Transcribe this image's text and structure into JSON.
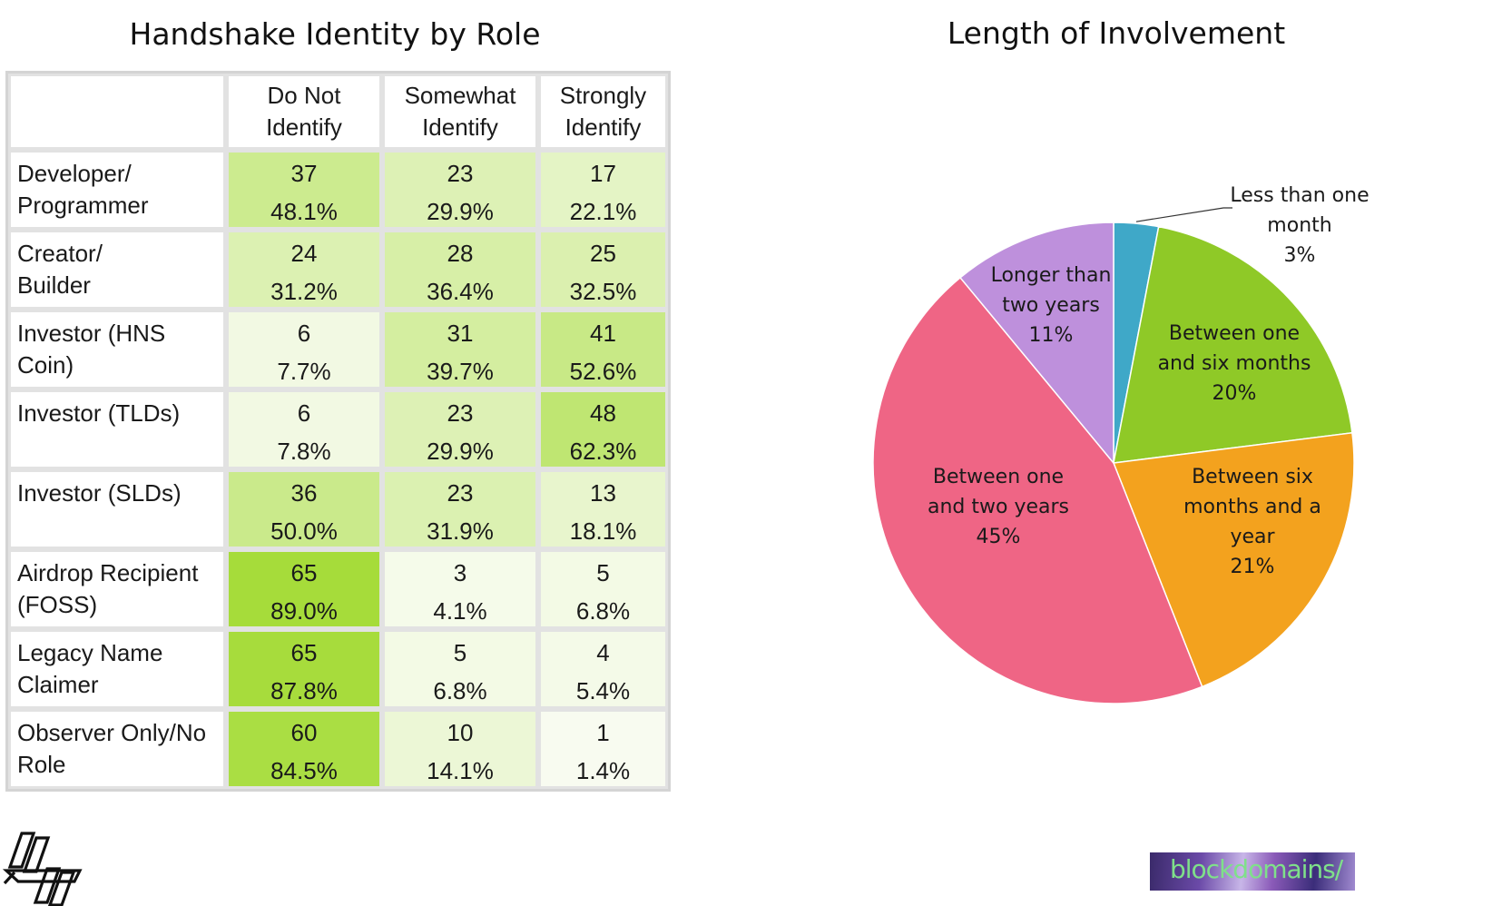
{
  "table": {
    "title": "Handshake Identity by Role",
    "columns": [
      "",
      "Do Not\nIdentify",
      "Somewhat\nIdentify",
      "Strongly\nIdentify"
    ],
    "rows": [
      {
        "role": "Developer/\nProgrammer",
        "cells": [
          {
            "count": "37",
            "pct": "48.1%"
          },
          {
            "count": "23",
            "pct": "29.9%"
          },
          {
            "count": "17",
            "pct": "22.1%"
          }
        ]
      },
      {
        "role": "Creator/\nBuilder",
        "cells": [
          {
            "count": "24",
            "pct": "31.2%"
          },
          {
            "count": "28",
            "pct": "36.4%"
          },
          {
            "count": "25",
            "pct": "32.5%"
          }
        ]
      },
      {
        "role": "Investor (HNS\nCoin)",
        "cells": [
          {
            "count": "6",
            "pct": "7.7%"
          },
          {
            "count": "31",
            "pct": "39.7%"
          },
          {
            "count": "41",
            "pct": "52.6%"
          }
        ]
      },
      {
        "role": "Investor (TLDs)",
        "cells": [
          {
            "count": "6",
            "pct": "7.8%"
          },
          {
            "count": "23",
            "pct": "29.9%"
          },
          {
            "count": "48",
            "pct": "62.3%"
          }
        ]
      },
      {
        "role": "Investor (SLDs)",
        "cells": [
          {
            "count": "36",
            "pct": "50.0%"
          },
          {
            "count": "23",
            "pct": "31.9%"
          },
          {
            "count": "13",
            "pct": "18.1%"
          }
        ]
      },
      {
        "role": "Airdrop Recipient\n(FOSS)",
        "cells": [
          {
            "count": "65",
            "pct": "89.0%"
          },
          {
            "count": "3",
            "pct": "4.1%"
          },
          {
            "count": "5",
            "pct": "6.8%"
          }
        ]
      },
      {
        "role": "Legacy Name\nClaimer",
        "cells": [
          {
            "count": "65",
            "pct": "87.8%"
          },
          {
            "count": "5",
            "pct": "6.8%"
          },
          {
            "count": "4",
            "pct": "5.4%"
          }
        ]
      },
      {
        "role": "Observer Only/No\nRole",
        "cells": [
          {
            "count": "60",
            "pct": "84.5%"
          },
          {
            "count": "10",
            "pct": "14.1%"
          },
          {
            "count": "1",
            "pct": "1.4%"
          }
        ]
      }
    ],
    "heat_colors": {
      "low": "#f9fcf3",
      "high": "#a6dc3a"
    }
  },
  "chart_data": [
    {
      "type": "table",
      "title": "Handshake Identity by Role",
      "columns": [
        "Do Not Identify",
        "Somewhat Identify",
        "Strongly Identify"
      ],
      "rows": [
        "Developer/Programmer",
        "Creator/Builder",
        "Investor (HNS Coin)",
        "Investor (TLDs)",
        "Investor (SLDs)",
        "Airdrop Recipient (FOSS)",
        "Legacy Name Claimer",
        "Observer Only/No Role"
      ],
      "counts": [
        [
          37,
          23,
          17
        ],
        [
          24,
          28,
          25
        ],
        [
          6,
          31,
          41
        ],
        [
          6,
          23,
          48
        ],
        [
          36,
          23,
          13
        ],
        [
          65,
          3,
          5
        ],
        [
          65,
          5,
          4
        ],
        [
          60,
          10,
          1
        ]
      ],
      "percents": [
        [
          48.1,
          29.9,
          22.1
        ],
        [
          31.2,
          36.4,
          32.5
        ],
        [
          7.7,
          39.7,
          52.6
        ],
        [
          7.8,
          29.9,
          62.3
        ],
        [
          50.0,
          31.9,
          18.1
        ],
        [
          89.0,
          4.1,
          6.8
        ],
        [
          87.8,
          6.8,
          5.4
        ],
        [
          84.5,
          14.1,
          1.4
        ]
      ]
    },
    {
      "type": "pie",
      "title": "Length of Involvement",
      "slices": [
        {
          "label": "Less than one\nmonth\n3%",
          "value": 3,
          "color": "#3fa8c8"
        },
        {
          "label": "Between one\nand six months\n20%",
          "value": 20,
          "color": "#8fc927"
        },
        {
          "label": "Between six\nmonths and a\nyear\n21%",
          "value": 21,
          "color": "#f3a21e"
        },
        {
          "label": "Between one\nand two years\n45%",
          "value": 45,
          "color": "#ef6585"
        },
        {
          "label": "Longer than\ntwo years\n11%",
          "value": 11,
          "color": "#be90dc"
        }
      ]
    }
  ],
  "logos": {
    "handshake": "Handshake logo",
    "blockdomains": "blockdomains/"
  }
}
